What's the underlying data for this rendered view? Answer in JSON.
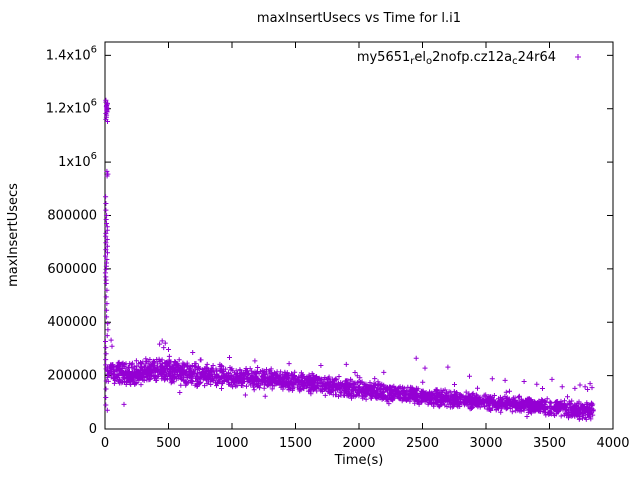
{
  "chart_data": {
    "type": "scatter",
    "title": "maxInsertUsecs vs Time for l.i1",
    "xlabel": "Time(s)",
    "ylabel": "maxInsertUsecs",
    "xlim": [
      0,
      4000
    ],
    "ylim": [
      0,
      1450000
    ],
    "grid": false,
    "legend_position": "top-right-inside",
    "xticks": [
      0,
      500,
      1000,
      1500,
      2000,
      2500,
      3000,
      3500,
      4000
    ],
    "yticks": [
      {
        "value": 0,
        "label": "0"
      },
      {
        "value": 200000,
        "label": "200000"
      },
      {
        "value": 400000,
        "label": "400000"
      },
      {
        "value": 600000,
        "label": "600000"
      },
      {
        "value": 800000,
        "label": "800000"
      },
      {
        "value": 1000000,
        "label": "1x10",
        "exp": "6"
      },
      {
        "value": 1200000,
        "label": "1.2x10",
        "exp": "6"
      },
      {
        "value": 1400000,
        "label": "1.4x10",
        "exp": "6"
      }
    ],
    "series": [
      {
        "name": "my5651_rel_o2nofp.cz12a_c24r64",
        "label_segments": [
          {
            "text": "my5651"
          },
          {
            "text": "r",
            "sub": true
          },
          {
            "text": "el"
          },
          {
            "text": "o",
            "sub": true
          },
          {
            "text": "2nofp.cz12a"
          },
          {
            "text": "c",
            "sub": true
          },
          {
            "text": "24r64"
          }
        ],
        "marker": "plus",
        "color": "#9400D3",
        "seed": 1337,
        "band_points": 2600,
        "band_x": [
          18,
          3850
        ],
        "trend": [
          [
            18,
            215000
          ],
          [
            150,
            208000
          ],
          [
            300,
            212000
          ],
          [
            430,
            228000
          ],
          [
            520,
            222000
          ],
          [
            650,
            208000
          ],
          [
            800,
            200000
          ],
          [
            1000,
            196000
          ],
          [
            1200,
            190000
          ],
          [
            1400,
            182000
          ],
          [
            1600,
            172000
          ],
          [
            1800,
            158000
          ],
          [
            2000,
            148000
          ],
          [
            2200,
            138000
          ],
          [
            2400,
            128000
          ],
          [
            2600,
            118000
          ],
          [
            2800,
            110000
          ],
          [
            3000,
            101000
          ],
          [
            3200,
            93000
          ],
          [
            3400,
            86000
          ],
          [
            3550,
            80000
          ],
          [
            3700,
            72000
          ],
          [
            3790,
            68000
          ],
          [
            3850,
            78000
          ]
        ],
        "spread": [
          [
            18,
            52000
          ],
          [
            500,
            52000
          ],
          [
            1000,
            42000
          ],
          [
            1500,
            40000
          ],
          [
            2000,
            38000
          ],
          [
            2500,
            36000
          ],
          [
            3000,
            33000
          ],
          [
            3500,
            32000
          ],
          [
            3850,
            38000
          ]
        ],
        "spike": {
          "x": [
            3,
            24
          ],
          "ys": [
            1232000,
            1225000,
            1220000,
            1215000,
            1212000,
            1208000,
            1204000,
            1200000,
            1196000,
            1192000,
            1188000,
            1182000,
            1176000,
            1168000,
            1160000,
            1152000,
            965000,
            955000,
            948000,
            870000,
            845000,
            820000,
            800000,
            785000,
            770000,
            758000,
            745000,
            733000,
            722000,
            710000,
            698000,
            685000,
            672000,
            660000,
            648000,
            635000,
            622000,
            610000,
            598000,
            585000,
            570000,
            558000,
            545000,
            520000,
            495000,
            470000,
            445000,
            420000,
            395000,
            372000,
            350000,
            328000,
            305000,
            282000,
            260000,
            240000,
            225000,
            180000,
            150000,
            118000,
            90000,
            70000
          ]
        },
        "extra_points": [
          [
            48,
            333000
          ],
          [
            55,
            310000
          ],
          [
            430,
            318000
          ],
          [
            450,
            330000
          ],
          [
            462,
            305000
          ],
          [
            475,
            322000
          ],
          [
            500,
            298000
          ],
          [
            150,
            92000
          ],
          [
            980,
            268000
          ],
          [
            1180,
            255000
          ],
          [
            1450,
            245000
          ],
          [
            1700,
            238000
          ],
          [
            1900,
            242000
          ],
          [
            2450,
            265000
          ],
          [
            2520,
            228000
          ],
          [
            2700,
            232000
          ],
          [
            2870,
            198000
          ],
          [
            3050,
            188000
          ],
          [
            3150,
            182000
          ],
          [
            3300,
            178000
          ],
          [
            3400,
            168000
          ],
          [
            3520,
            186000
          ],
          [
            3600,
            158000
          ],
          [
            3650,
            42000
          ],
          [
            3700,
            152000
          ],
          [
            3700,
            48000
          ],
          [
            3740,
            165000
          ],
          [
            3760,
            40000
          ],
          [
            3780,
            158000
          ],
          [
            3790,
            36000
          ],
          [
            3800,
            148000
          ],
          [
            3810,
            44000
          ],
          [
            3820,
            170000
          ],
          [
            3825,
            38000
          ],
          [
            3835,
            155000
          ],
          [
            3840,
            52000
          ]
        ]
      }
    ]
  }
}
